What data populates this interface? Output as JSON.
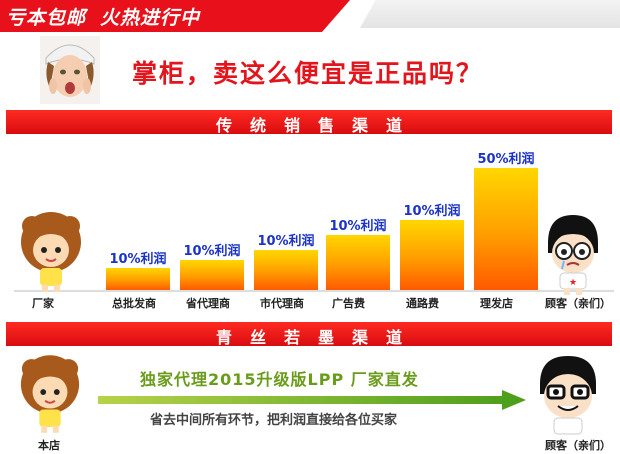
{
  "banner": {
    "left": "亏本包邮",
    "right": "火热进行中"
  },
  "headline": "掌柜，卖这么便宜是正品吗？",
  "section1_title": "传统销售渠道",
  "section2_title": "青丝若墨渠道",
  "chart_data": {
    "type": "bar",
    "categories": [
      "总批发商",
      "省代理商",
      "市代理商",
      "广告费",
      "通路费",
      "理发店"
    ],
    "values": [
      10,
      10,
      10,
      10,
      10,
      50
    ],
    "value_labels": [
      "10%利润",
      "10%利润",
      "10%利润",
      "10%利润",
      "10%利润",
      "50%利润"
    ]
  },
  "chain_start": "厂家",
  "chain_end": "顾客（亲们）",
  "promo": "独家代理2015升级版LPP   厂家直发",
  "slogan": "省去中间所有环节，把利润直接给各位买家",
  "bottom_start": "本店",
  "bottom_end": "顾客（亲们）",
  "colors": {
    "red": "#e8101a",
    "bar_top": "#ffd700",
    "bar_bottom": "#ff5a00",
    "label_blue": "#1c33c8",
    "promo_green": "#6a9c1c"
  }
}
